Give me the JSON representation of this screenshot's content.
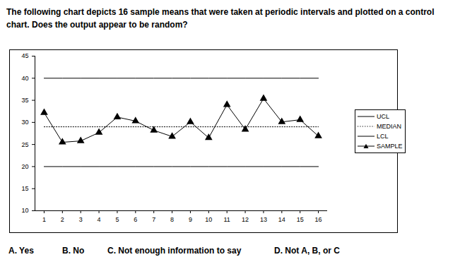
{
  "chart_data": {
    "type": "line",
    "title": "The following chart depicts 16 sample means that were taken at periodic intervals and plotted on a control chart. Does the output appear to be random?",
    "annotations": [
      "A. Yes",
      "B. No",
      "C. Not enough information to say",
      "D. Not A, B, or C"
    ],
    "x": [
      1,
      2,
      3,
      4,
      5,
      6,
      7,
      8,
      9,
      10,
      11,
      12,
      13,
      14,
      15,
      16
    ],
    "xlim": [
      0.5,
      16.5
    ],
    "xticks": [
      1,
      2,
      3,
      4,
      5,
      6,
      7,
      8,
      9,
      10,
      11,
      12,
      13,
      14,
      15,
      16
    ],
    "ylim": [
      10,
      45
    ],
    "yticks": [
      10,
      15,
      20,
      25,
      30,
      35,
      40,
      45
    ],
    "legend": "right",
    "series": [
      {
        "name": "UCL",
        "color": "#000000",
        "line_style": "solid",
        "values": [
          40,
          40,
          40,
          40,
          40,
          40,
          40,
          40,
          40,
          40,
          40,
          40,
          40,
          40,
          40,
          40
        ]
      },
      {
        "name": "MEDIAN",
        "color": "#000000",
        "line_style": "dotted",
        "values": [
          29,
          29,
          29,
          29,
          29,
          29,
          29,
          29,
          29,
          29,
          29,
          29,
          29,
          29,
          29,
          29
        ]
      },
      {
        "name": "LCL",
        "color": "#000000",
        "line_style": "solid",
        "values": [
          20,
          20,
          20,
          20,
          20,
          20,
          20,
          20,
          20,
          20,
          20,
          20,
          20,
          20,
          20,
          20
        ]
      },
      {
        "name": "SAMPLE",
        "color": "#000000",
        "line_style": "solid",
        "marker": "triangle",
        "values": [
          32.2,
          25.5,
          25.8,
          27.7,
          31.2,
          30.3,
          28.2,
          26.8,
          30.1,
          26.5,
          34.0,
          28.4,
          35.4,
          30.1,
          30.6,
          26.9
        ]
      }
    ]
  }
}
